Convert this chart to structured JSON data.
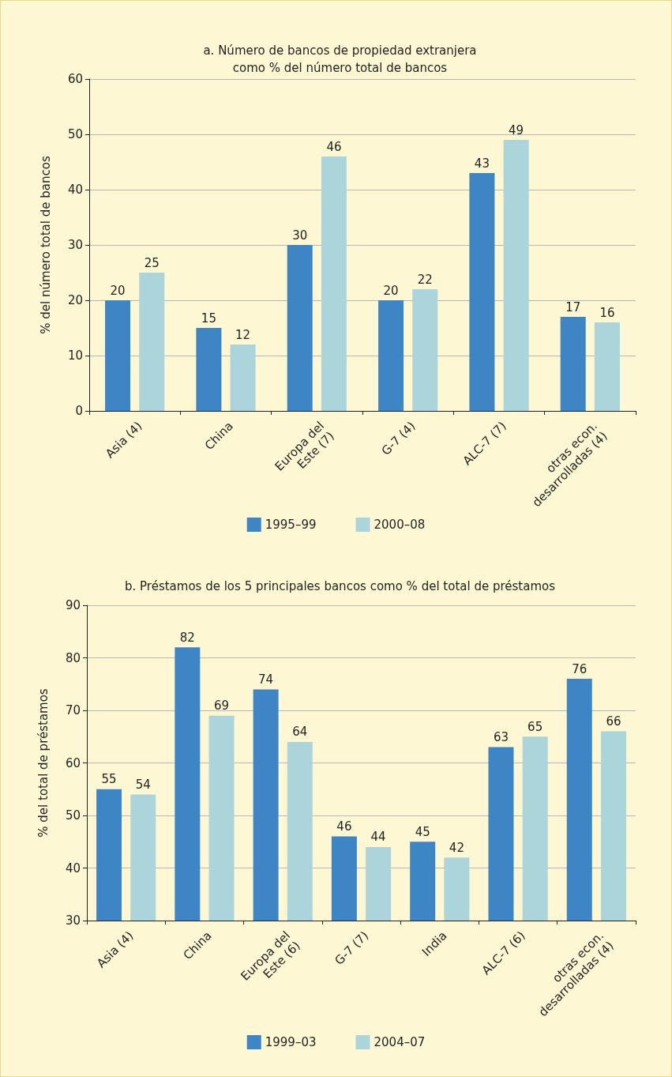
{
  "chart_data": [
    {
      "type": "bar",
      "title": "a. Número de bancos de propiedad extranjera\ncomo % del número total de bancos",
      "ylabel": "% del número total de bancos",
      "categories": [
        "Asia (4)",
        "China",
        "Europa del\nEste (7)",
        "G-7 (4)",
        "ALC-7 (7)",
        "otras econ.\ndesarrolladas (4)"
      ],
      "series": [
        {
          "name": "1995–99",
          "color": "#3e85c6",
          "values": [
            20,
            15,
            30,
            20,
            43,
            17
          ]
        },
        {
          "name": "2000–08",
          "color": "#abd4db",
          "values": [
            25,
            12,
            46,
            22,
            49,
            16
          ]
        }
      ],
      "ylim": [
        0,
        60
      ],
      "yticks": [
        0,
        10,
        20,
        30,
        40,
        50,
        60
      ],
      "grid": "y",
      "legend": "bottom",
      "data_labels": true
    },
    {
      "type": "bar",
      "title": "b. Préstamos de los 5 principales bancos como % del total de préstamos",
      "ylabel": "% del total de préstamos",
      "categories": [
        "Asia (4)",
        "China",
        "Europa del\nEste (6)",
        "G-7 (7)",
        "India",
        "ALC-7 (6)",
        "otras econ.\ndesarrolladas (4)"
      ],
      "series": [
        {
          "name": "1999–03",
          "color": "#3e85c6",
          "values": [
            55,
            82,
            74,
            46,
            45,
            63,
            76
          ]
        },
        {
          "name": "2004–07",
          "color": "#abd4db",
          "values": [
            54,
            69,
            64,
            44,
            42,
            65,
            66
          ]
        }
      ],
      "ylim": [
        30,
        90
      ],
      "yticks": [
        30,
        40,
        50,
        60,
        70,
        80,
        90
      ],
      "grid": "y",
      "legend": "bottom",
      "data_labels": true
    }
  ]
}
